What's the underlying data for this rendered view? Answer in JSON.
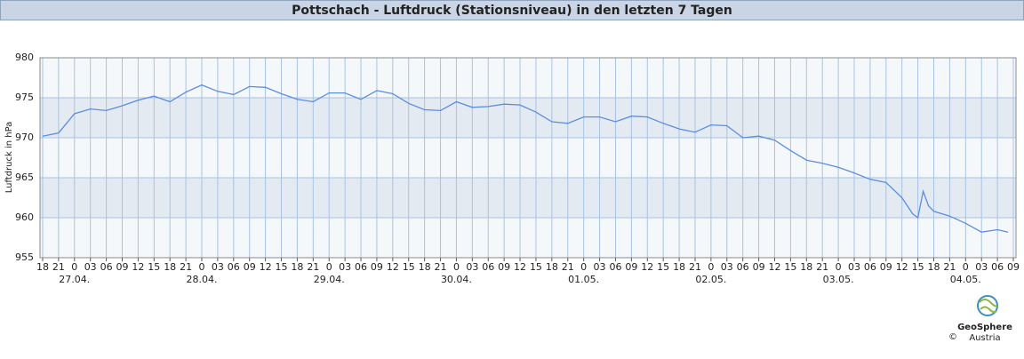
{
  "chart_data": {
    "type": "line",
    "title": "Pottschach - Luftdruck (Stationsniveau) in den letzten 7 Tagen",
    "y_label": "Luftdruck in hPa",
    "x": [
      -6,
      -3,
      0,
      3,
      6,
      9,
      12,
      15,
      18,
      21,
      24,
      27,
      30,
      33,
      36,
      39,
      42,
      45,
      48,
      51,
      54,
      57,
      60,
      63,
      66,
      69,
      72,
      75,
      78,
      81,
      84,
      87,
      90,
      93,
      96,
      99,
      102,
      105,
      108,
      111,
      114,
      117,
      120,
      123,
      126,
      129,
      132,
      135,
      138,
      141,
      144,
      147,
      150,
      153,
      156,
      158,
      159,
      160,
      161,
      162,
      165,
      168,
      171,
      174,
      176
    ],
    "series": [
      {
        "name": "Luftdruck",
        "color": "#5b8de0",
        "values": [
          970.2,
          970.6,
          973.0,
          973.6,
          973.4,
          974.0,
          974.7,
          975.2,
          974.5,
          975.7,
          976.6,
          975.8,
          975.4,
          976.4,
          976.3,
          975.5,
          974.8,
          974.5,
          975.6,
          975.6,
          974.8,
          975.9,
          975.5,
          974.3,
          973.5,
          973.4,
          974.5,
          973.8,
          973.9,
          974.2,
          974.1,
          973.2,
          972.0,
          971.8,
          972.6,
          972.6,
          972.0,
          972.7,
          972.6,
          971.8,
          971.1,
          970.7,
          971.6,
          971.5,
          970.0,
          970.2,
          969.7,
          968.4,
          967.2,
          966.8,
          966.3,
          965.6,
          964.8,
          964.4,
          962.5,
          960.5,
          960.0,
          963.3,
          961.5,
          960.8,
          960.2,
          959.3,
          958.2,
          958.5,
          958.2
        ]
      }
    ],
    "xlim": [
      -6.5,
      177.5
    ],
    "xticks": [
      {
        "value": -6,
        "label": "18"
      },
      {
        "value": -3,
        "label": "21"
      },
      {
        "value": 0,
        "label": "0"
      },
      {
        "value": 3,
        "label": "03"
      },
      {
        "value": 6,
        "label": "06"
      },
      {
        "value": 9,
        "label": "09"
      },
      {
        "value": 12,
        "label": "12"
      },
      {
        "value": 15,
        "label": "15"
      },
      {
        "value": 18,
        "label": "18"
      },
      {
        "value": 21,
        "label": "21"
      },
      {
        "value": 24,
        "label": "0"
      },
      {
        "value": 27,
        "label": "03"
      },
      {
        "value": 30,
        "label": "06"
      },
      {
        "value": 33,
        "label": "09"
      },
      {
        "value": 36,
        "label": "12"
      },
      {
        "value": 39,
        "label": "15"
      },
      {
        "value": 42,
        "label": "18"
      },
      {
        "value": 45,
        "label": "21"
      },
      {
        "value": 48,
        "label": "0"
      },
      {
        "value": 51,
        "label": "03"
      },
      {
        "value": 54,
        "label": "06"
      },
      {
        "value": 57,
        "label": "09"
      },
      {
        "value": 60,
        "label": "12"
      },
      {
        "value": 63,
        "label": "15"
      },
      {
        "value": 66,
        "label": "18"
      },
      {
        "value": 69,
        "label": "21"
      },
      {
        "value": 72,
        "label": "0"
      },
      {
        "value": 75,
        "label": "03"
      },
      {
        "value": 78,
        "label": "06"
      },
      {
        "value": 81,
        "label": "09"
      },
      {
        "value": 84,
        "label": "12"
      },
      {
        "value": 87,
        "label": "15"
      },
      {
        "value": 90,
        "label": "18"
      },
      {
        "value": 93,
        "label": "21"
      },
      {
        "value": 96,
        "label": "0"
      },
      {
        "value": 99,
        "label": "03"
      },
      {
        "value": 102,
        "label": "06"
      },
      {
        "value": 105,
        "label": "09"
      },
      {
        "value": 108,
        "label": "12"
      },
      {
        "value": 111,
        "label": "15"
      },
      {
        "value": 114,
        "label": "18"
      },
      {
        "value": 117,
        "label": "21"
      },
      {
        "value": 120,
        "label": "0"
      },
      {
        "value": 123,
        "label": "03"
      },
      {
        "value": 126,
        "label": "06"
      },
      {
        "value": 129,
        "label": "09"
      },
      {
        "value": 132,
        "label": "12"
      },
      {
        "value": 135,
        "label": "15"
      },
      {
        "value": 138,
        "label": "18"
      },
      {
        "value": 141,
        "label": "21"
      },
      {
        "value": 144,
        "label": "0"
      },
      {
        "value": 147,
        "label": "03"
      },
      {
        "value": 150,
        "label": "06"
      },
      {
        "value": 153,
        "label": "09"
      },
      {
        "value": 156,
        "label": "12"
      },
      {
        "value": 159,
        "label": "15"
      },
      {
        "value": 162,
        "label": "18"
      },
      {
        "value": 165,
        "label": "21"
      },
      {
        "value": 168,
        "label": "0"
      },
      {
        "value": 171,
        "label": "03"
      },
      {
        "value": 174,
        "label": "06"
      },
      {
        "value": 177,
        "label": "09"
      }
    ],
    "date_labels": [
      {
        "value": 0,
        "label": "27.04."
      },
      {
        "value": 24,
        "label": "28.04."
      },
      {
        "value": 48,
        "label": "29.04."
      },
      {
        "value": 72,
        "label": "30.04."
      },
      {
        "value": 96,
        "label": "01.05."
      },
      {
        "value": 120,
        "label": "02.05."
      },
      {
        "value": 144,
        "label": "03.05."
      },
      {
        "value": 168,
        "label": "04.05."
      }
    ],
    "ylim": [
      955,
      980
    ],
    "yticks": [
      955,
      960,
      965,
      970,
      975,
      980
    ],
    "grid": true
  },
  "logo": {
    "name": "GeoSphere",
    "sub": "Austria",
    "copyright": "©"
  }
}
